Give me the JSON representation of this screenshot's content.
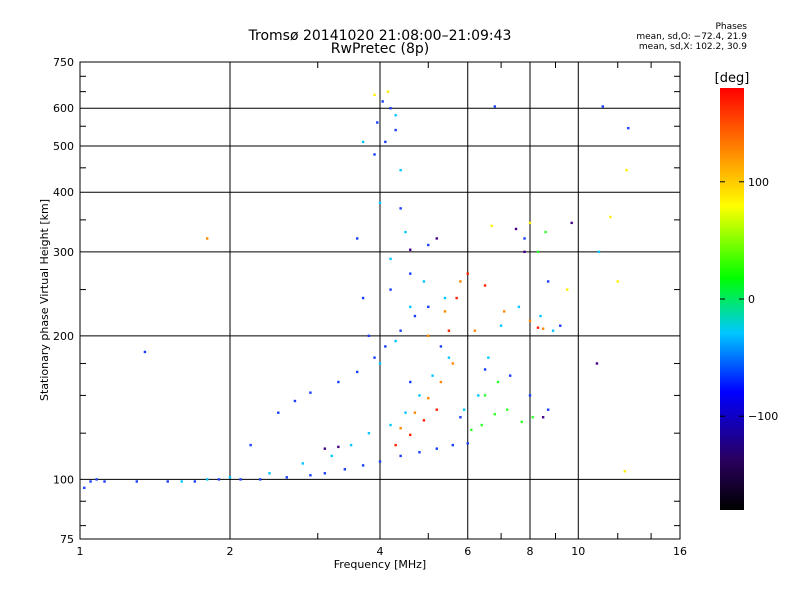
{
  "header": {
    "title_line1": "Tromsø 20141020 21:08:00–21:09:43",
    "title_line2": "RwPretec (8p)",
    "phases_title": "Phases",
    "phases_line1": "mean, sd,O: −72.4, 21.9",
    "phases_line2": "mean, sd,X: 102.2, 30.9"
  },
  "chart_data": {
    "type": "scatter",
    "xlabel": "Frequency [MHz]",
    "ylabel": "Stationary phase Virtual Height [km]",
    "x_scale": "log",
    "y_scale": "log",
    "xlim": [
      1,
      16
    ],
    "ylim": [
      75,
      750
    ],
    "x_ticks": [
      1,
      2,
      4,
      6,
      8,
      10,
      16
    ],
    "y_ticks": [
      75,
      100,
      200,
      300,
      400,
      500,
      600,
      750
    ],
    "grid": true,
    "colorbar": {
      "label": "[deg]",
      "range": [
        -180,
        180
      ],
      "ticks": [
        100,
        0,
        -100
      ],
      "colors": [
        "#000000",
        "#2a0060",
        "#0000ff",
        "#00c8ff",
        "#00ff00",
        "#ffff00",
        "#ff8000",
        "#ff0000"
      ]
    },
    "series": [
      {
        "color": "#1a3cff",
        "points": [
          [
            1.02,
            96
          ],
          [
            1.05,
            99
          ],
          [
            1.08,
            100
          ],
          [
            1.12,
            99
          ],
          [
            1.3,
            99
          ],
          [
            1.5,
            99
          ],
          [
            1.7,
            99
          ],
          [
            1.9,
            100
          ],
          [
            2.1,
            100
          ],
          [
            2.3,
            100
          ],
          [
            2.6,
            101
          ],
          [
            2.9,
            102
          ],
          [
            3.1,
            103
          ],
          [
            3.4,
            105
          ],
          [
            3.7,
            107
          ],
          [
            4.0,
            109
          ],
          [
            4.4,
            112
          ],
          [
            4.8,
            114
          ],
          [
            5.2,
            116
          ],
          [
            5.6,
            118
          ],
          [
            6.0,
            119
          ],
          [
            2.5,
            138
          ],
          [
            2.7,
            146
          ],
          [
            2.9,
            152
          ],
          [
            3.3,
            160
          ],
          [
            3.6,
            168
          ],
          [
            3.9,
            180
          ],
          [
            3.8,
            200
          ],
          [
            4.1,
            190
          ],
          [
            4.4,
            205
          ],
          [
            4.7,
            220
          ],
          [
            3.7,
            240
          ],
          [
            4.2,
            250
          ],
          [
            4.6,
            270
          ],
          [
            5.0,
            230
          ],
          [
            5.3,
            190
          ],
          [
            6.5,
            170
          ],
          [
            7.3,
            165
          ],
          [
            8.0,
            150
          ],
          [
            8.7,
            140
          ],
          [
            3.9,
            480
          ],
          [
            4.1,
            510
          ],
          [
            4.3,
            540
          ],
          [
            3.95,
            560
          ],
          [
            4.2,
            600
          ],
          [
            4.05,
            620
          ],
          [
            6.8,
            605
          ],
          [
            11.2,
            605
          ],
          [
            12.6,
            545
          ],
          [
            1.35,
            185
          ],
          [
            3.6,
            320
          ],
          [
            4.4,
            370
          ],
          [
            5.0,
            310
          ],
          [
            7.8,
            320
          ],
          [
            8.7,
            260
          ],
          [
            9.2,
            210
          ],
          [
            5.8,
            135
          ],
          [
            4.6,
            160
          ],
          [
            2.2,
            118
          ]
        ]
      },
      {
        "color": "#00c8ff",
        "points": [
          [
            1.6,
            99
          ],
          [
            1.8,
            100
          ],
          [
            2.0,
            101
          ],
          [
            2.4,
            103
          ],
          [
            2.8,
            108
          ],
          [
            3.2,
            112
          ],
          [
            3.5,
            118
          ],
          [
            3.8,
            125
          ],
          [
            4.2,
            130
          ],
          [
            4.5,
            138
          ],
          [
            4.8,
            150
          ],
          [
            5.1,
            165
          ],
          [
            5.5,
            180
          ],
          [
            4.0,
            175
          ],
          [
            4.3,
            195
          ],
          [
            4.6,
            230
          ],
          [
            4.9,
            260
          ],
          [
            5.4,
            240
          ],
          [
            4.2,
            290
          ],
          [
            4.5,
            330
          ],
          [
            4.0,
            380
          ],
          [
            4.4,
            445
          ],
          [
            5.9,
            140
          ],
          [
            6.3,
            150
          ],
          [
            6.6,
            180
          ],
          [
            7.0,
            210
          ],
          [
            7.6,
            230
          ],
          [
            8.4,
            220
          ],
          [
            8.9,
            205
          ],
          [
            3.7,
            510
          ],
          [
            4.3,
            580
          ],
          [
            11.0,
            300
          ]
        ]
      },
      {
        "color": "#30ff30",
        "points": [
          [
            6.1,
            127
          ],
          [
            6.4,
            130
          ],
          [
            6.8,
            137
          ],
          [
            7.2,
            140
          ],
          [
            7.7,
            132
          ],
          [
            8.1,
            135
          ],
          [
            6.5,
            150
          ],
          [
            6.9,
            160
          ],
          [
            8.3,
            300
          ],
          [
            8.6,
            330
          ]
        ]
      },
      {
        "color": "#ffee00",
        "points": [
          [
            3.9,
            640
          ],
          [
            4.15,
            650
          ],
          [
            6.7,
            340
          ],
          [
            8.0,
            345
          ],
          [
            9.5,
            250
          ],
          [
            12.0,
            260
          ],
          [
            12.5,
            445
          ],
          [
            11.6,
            355
          ],
          [
            12.4,
            104
          ]
        ]
      },
      {
        "color": "#ff8800",
        "points": [
          [
            4.4,
            128
          ],
          [
            4.7,
            138
          ],
          [
            5.0,
            148
          ],
          [
            5.3,
            160
          ],
          [
            5.6,
            175
          ],
          [
            5.0,
            200
          ],
          [
            5.4,
            225
          ],
          [
            5.8,
            260
          ],
          [
            6.2,
            205
          ],
          [
            7.1,
            225
          ],
          [
            8.0,
            215
          ],
          [
            8.5,
            207
          ],
          [
            1.8,
            320
          ]
        ]
      },
      {
        "color": "#ff2000",
        "points": [
          [
            4.3,
            118
          ],
          [
            4.6,
            124
          ],
          [
            4.9,
            133
          ],
          [
            5.2,
            140
          ],
          [
            5.5,
            205
          ],
          [
            5.7,
            240
          ],
          [
            6.0,
            270
          ],
          [
            6.5,
            255
          ],
          [
            8.3,
            208
          ]
        ]
      },
      {
        "color": "#440088",
        "points": [
          [
            3.1,
            116
          ],
          [
            3.3,
            117
          ],
          [
            4.6,
            303
          ],
          [
            5.2,
            320
          ],
          [
            7.5,
            335
          ],
          [
            7.8,
            300
          ],
          [
            8.5,
            135
          ],
          [
            9.7,
            345
          ],
          [
            10.9,
            175
          ]
        ]
      }
    ]
  }
}
